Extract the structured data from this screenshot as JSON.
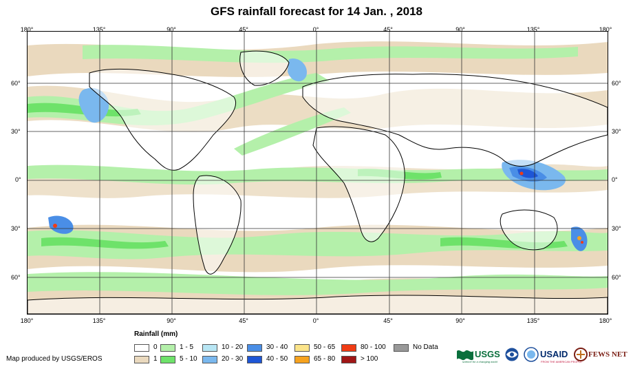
{
  "title": "GFS rainfall forecast for 14 Jan. , 2018",
  "map": {
    "lon_labels_top": [
      "180°",
      "135°",
      "90°",
      "45°",
      "0°",
      "45°",
      "90°",
      "135°",
      "180°"
    ],
    "lon_labels_bottom": [
      "180°",
      "135°",
      "90°",
      "45°",
      "0°",
      "45°",
      "90°",
      "135°",
      "180°"
    ],
    "lat_labels_left": [
      "60°",
      "30°",
      "0°",
      "30°",
      "60°"
    ],
    "lat_labels_right": [
      "60°",
      "30°",
      "0°",
      "30°",
      "60°"
    ]
  },
  "legend": {
    "title": "Rainfall (mm)",
    "items": [
      {
        "label": "0",
        "color": "#ffffff"
      },
      {
        "label": "1",
        "color": "#ead9be"
      },
      {
        "label": "1 - 5",
        "color": "#b4f0aa"
      },
      {
        "label": "5 - 10",
        "color": "#6ee26a"
      },
      {
        "label": "10 - 20",
        "color": "#b8e6f4"
      },
      {
        "label": "20 - 30",
        "color": "#7ab8ee"
      },
      {
        "label": "30 - 40",
        "color": "#4a8ee6"
      },
      {
        "label": "40 - 50",
        "color": "#1e56d6"
      },
      {
        "label": "50 - 65",
        "color": "#fbe48a"
      },
      {
        "label": "65 - 80",
        "color": "#f6a21e"
      },
      {
        "label": "80 - 100",
        "color": "#f03c14"
      },
      {
        "label": "> 100",
        "color": "#a01616"
      },
      {
        "label": "No Data",
        "color": "#999999"
      }
    ]
  },
  "credit": "Map produced by USGS/EROS",
  "logos": {
    "usgs": "USGS",
    "usgs_tagline": "science for a changing world",
    "usaid": "USAID",
    "usaid_tagline": "FROM THE AMERICAN PEOPLE",
    "fews": "FEWS NET"
  }
}
